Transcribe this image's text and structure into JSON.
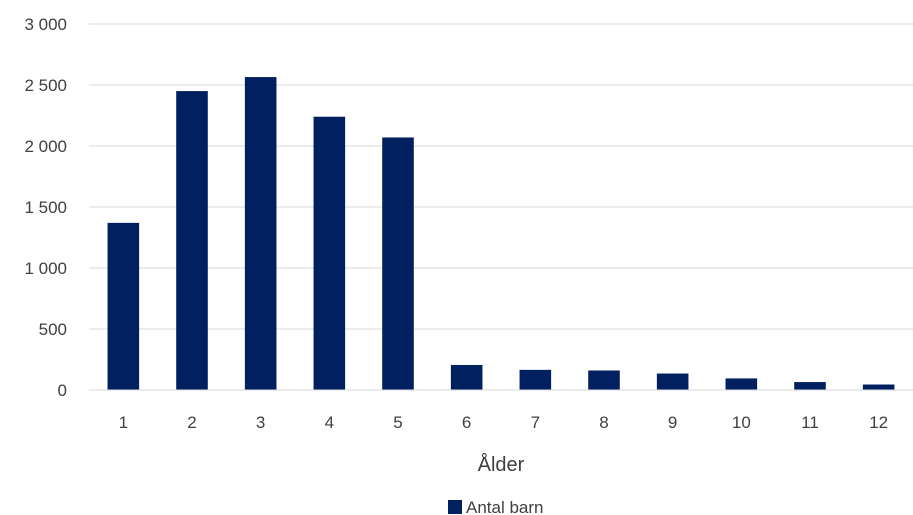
{
  "chart_data": {
    "type": "bar",
    "categories": [
      "1",
      "2",
      "3",
      "4",
      "5",
      "6",
      "7",
      "8",
      "9",
      "10",
      "11",
      "12"
    ],
    "series": [
      {
        "name": "Antal barn",
        "values": [
          1370,
          2450,
          2565,
          2240,
          2070,
          205,
          165,
          160,
          135,
          95,
          65,
          45
        ]
      }
    ],
    "xlabel": "Ålder",
    "ylabel": "",
    "ylim": [
      0,
      3000
    ],
    "yticks": [
      0,
      500,
      1000,
      1500,
      2000,
      2500,
      3000
    ],
    "ytick_labels": [
      "0",
      "500",
      "1 000",
      "1 500",
      "2 000",
      "2 500",
      "3 000"
    ],
    "grid": true,
    "legend_position": "bottom",
    "bar_color": "#002060"
  }
}
